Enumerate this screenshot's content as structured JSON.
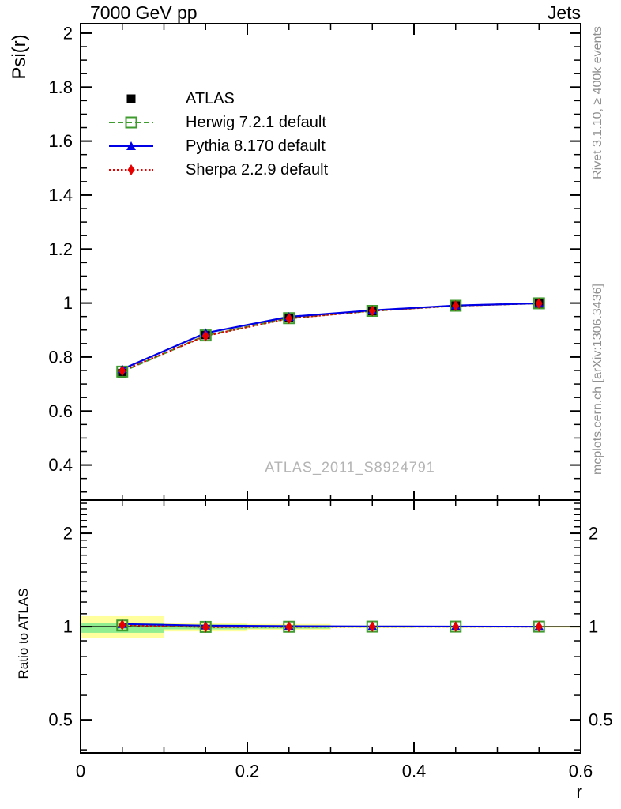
{
  "page": {
    "background": "#ffffff"
  },
  "header": {
    "title_left": "7000 GeV pp",
    "title_right": "Jets"
  },
  "axis_labels": {
    "x": "r",
    "y_main": "Psi(r)",
    "y_ratio": "Ratio to ATLAS"
  },
  "side_notes": {
    "top_right": "Rivet 3.1.10, ≥ 400k events",
    "bottom_right": "mcplots.cern.ch [arXiv:1306.3436]",
    "color": "#909090"
  },
  "watermark": {
    "text": "ATLAS_2011_S8924791",
    "color": "#b4b4b4"
  },
  "chart_data": {
    "type": "line",
    "title": "7000 GeV pp / Jets",
    "xlabel": "r",
    "ylabel": "Psi(r)",
    "ratio_ylabel": "Ratio to ATLAS",
    "xlim": [
      0,
      0.6
    ],
    "main_ylim": [
      0.27,
      2.035
    ],
    "ratio_ylim": [
      0.391,
      2.56
    ],
    "ratio_scale": "log",
    "grid": false,
    "legend_position": "upper-left",
    "x": [
      0.05,
      0.15,
      0.25,
      0.35,
      0.45,
      0.55
    ],
    "xticks": {
      "major": [
        {
          "v": 0,
          "label": "0"
        },
        {
          "v": 0.2,
          "label": "0.2"
        },
        {
          "v": 0.4,
          "label": "0.4"
        },
        {
          "v": 0.6,
          "label": "0.6"
        }
      ],
      "minor_step": 0.05
    },
    "main_yticks": {
      "major": [
        {
          "v": 2,
          "label": "2"
        },
        {
          "v": 1.8,
          "label": "1.8"
        },
        {
          "v": 1.6,
          "label": "1.6"
        },
        {
          "v": 1.4,
          "label": "1.4"
        },
        {
          "v": 1.2,
          "label": "1.2"
        },
        {
          "v": 1,
          "label": "1"
        },
        {
          "v": 0.8,
          "label": "0.8"
        },
        {
          "v": 0.6,
          "label": "0.6"
        },
        {
          "v": 0.4,
          "label": "0.4"
        }
      ],
      "minor_step": 0.05
    },
    "ratio_yticks": {
      "major": [
        {
          "v": 2,
          "label": "2"
        },
        {
          "v": 1,
          "label": "1"
        },
        {
          "v": 0.5,
          "label": "0.5"
        }
      ],
      "minor": [
        0.4,
        0.6,
        0.7,
        0.8,
        0.9,
        1.1,
        1.2,
        1.3,
        1.4,
        1.5,
        1.6,
        1.7,
        1.8,
        1.9,
        2.1,
        2.2,
        2.3,
        2.4,
        2.5
      ]
    },
    "band_colors": {
      "yellow": "#ffff9e",
      "green": "#90ee90"
    },
    "ratio_reference_line": 1,
    "bands": [
      {
        "r0": 0.0,
        "r1": 0.1,
        "yellow": [
          0.92,
          1.08
        ],
        "green": [
          0.955,
          1.03
        ]
      },
      {
        "r0": 0.1,
        "r1": 0.2,
        "yellow": [
          0.965,
          1.03
        ],
        "green": [
          0.98,
          1.015
        ]
      },
      {
        "r0": 0.2,
        "r1": 0.3,
        "yellow": [
          0.975,
          1.02
        ],
        "green": [
          0.985,
          1.01
        ]
      },
      {
        "r0": 0.3,
        "r1": 0.4,
        "yellow": [
          0.99,
          1.008
        ],
        "green": [
          0.994,
          1.004
        ]
      },
      {
        "r0": 0.4,
        "r1": 0.5,
        "yellow": [
          0.992,
          1.006
        ],
        "green": [
          0.995,
          1.003
        ]
      },
      {
        "r0": 0.5,
        "r1": 0.6,
        "yellow": [
          0.993,
          1.006
        ],
        "green": [
          0.996,
          1.003
        ]
      }
    ],
    "series": [
      {
        "name": "ATLAS",
        "color": "#000000",
        "marker": "square-filled",
        "linestyle": "none",
        "show_in_ratio": false,
        "main": [
          0.74,
          0.882,
          0.945,
          0.971,
          0.99,
          0.999
        ],
        "ratio": [
          1,
          1,
          1,
          1,
          1,
          1
        ]
      },
      {
        "name": "Herwig 7.2.1 default",
        "color": "#3e9b2d",
        "marker": "square-open",
        "linestyle": "dashed",
        "show_in_ratio": true,
        "main": [
          0.746,
          0.88,
          0.944,
          0.971,
          0.99,
          0.999
        ],
        "ratio": [
          1.008,
          0.998,
          0.999,
          1.0,
          1.0,
          1.0
        ]
      },
      {
        "name": "Pythia 8.170 default",
        "color": "#0000e6",
        "marker": "triangle-filled",
        "linestyle": "solid",
        "show_in_ratio": true,
        "main": [
          0.755,
          0.889,
          0.949,
          0.973,
          0.991,
          0.999
        ],
        "ratio": [
          1.02,
          1.008,
          1.004,
          1.002,
          1.001,
          1.0
        ]
      },
      {
        "name": "Sherpa 2.2.9 default",
        "color": "#e60000",
        "marker": "diamond-filled",
        "linestyle": "dotted",
        "show_in_ratio": true,
        "main": [
          0.749,
          0.878,
          0.943,
          0.971,
          0.99,
          0.999
        ],
        "ratio": [
          1.012,
          0.996,
          0.998,
          1.0,
          1.0,
          1.0
        ]
      }
    ]
  }
}
